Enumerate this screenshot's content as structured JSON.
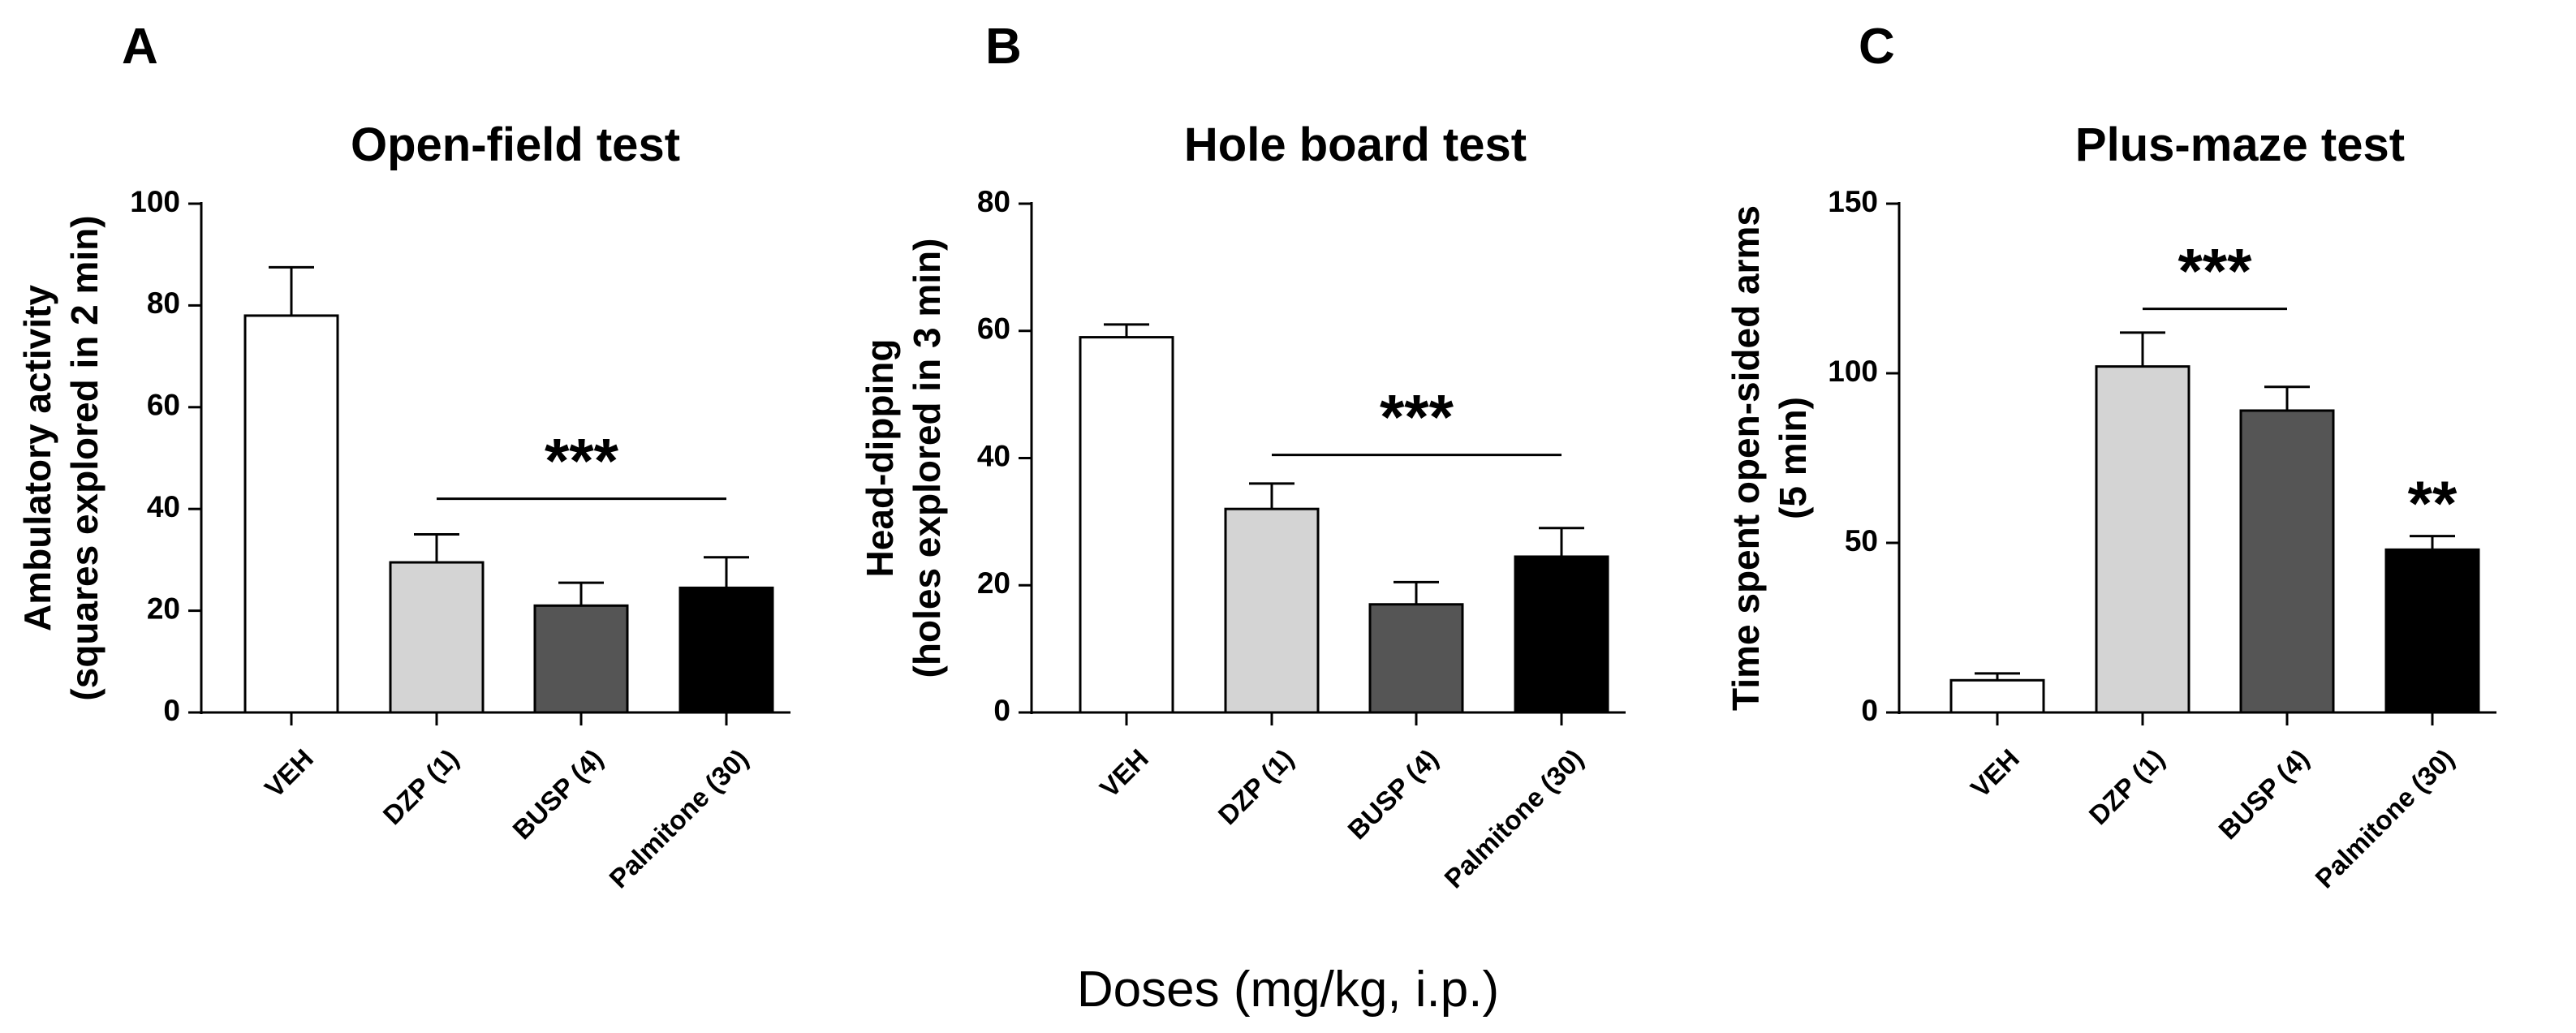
{
  "figure": {
    "xlabel_common": "Doses (mg/kg, i.p.)"
  },
  "chart_data": [
    {
      "panel": "A",
      "type": "bar",
      "title": "Open-field test",
      "ylabel_lines": [
        "Ambulatory activity",
        "(squares explored in 2 min)"
      ],
      "xlabel": "",
      "ylim": [
        0,
        100
      ],
      "yticks": [
        0,
        20,
        40,
        60,
        80,
        100
      ],
      "categories": [
        "VEH",
        "DZP (1)",
        "BUSP (4)",
        "Palmitone (30)"
      ],
      "values": [
        78,
        29.5,
        21,
        24.5
      ],
      "errors": [
        9.5,
        5.5,
        4.5,
        6
      ],
      "bar_colors": [
        "#ffffff",
        "#d4d4d4",
        "#555555",
        "#000000"
      ],
      "significance": [
        {
          "label": "***",
          "from": 1,
          "to": 3,
          "line_y": 42
        }
      ]
    },
    {
      "panel": "B",
      "type": "bar",
      "title": "Hole board test",
      "ylabel_lines": [
        "Head-dipping",
        "(holes explored in 3 min)"
      ],
      "xlabel": "",
      "ylim": [
        0,
        80
      ],
      "yticks": [
        0,
        20,
        40,
        60,
        80
      ],
      "categories": [
        "VEH",
        "DZP (1)",
        "BUSP (4)",
        "Palmitone (30)"
      ],
      "values": [
        59,
        32,
        17,
        24.5
      ],
      "errors": [
        2,
        4,
        3.5,
        4.5
      ],
      "bar_colors": [
        "#ffffff",
        "#d4d4d4",
        "#555555",
        "#000000"
      ],
      "significance": [
        {
          "label": "***",
          "from": 1,
          "to": 3,
          "line_y": 40.5
        }
      ]
    },
    {
      "panel": "C",
      "type": "bar",
      "title": "Plus-maze test",
      "ylabel_lines": [
        "Time spent open-sided arms",
        "(5 min)"
      ],
      "xlabel": "",
      "ylim": [
        0,
        150
      ],
      "yticks": [
        0,
        50,
        100,
        150
      ],
      "categories": [
        "VEH",
        "DZP (1)",
        "BUSP (4)",
        "Palmitone (30)"
      ],
      "values": [
        9.5,
        102,
        89,
        48
      ],
      "errors": [
        2,
        10,
        7,
        4
      ],
      "bar_colors": [
        "#ffffff",
        "#d4d4d4",
        "#555555",
        "#000000"
      ],
      "significance": [
        {
          "label": "***",
          "from": 1,
          "to": 2,
          "line_y": 119
        },
        {
          "label": "**",
          "at": 3,
          "text_y": 62
        }
      ]
    }
  ]
}
